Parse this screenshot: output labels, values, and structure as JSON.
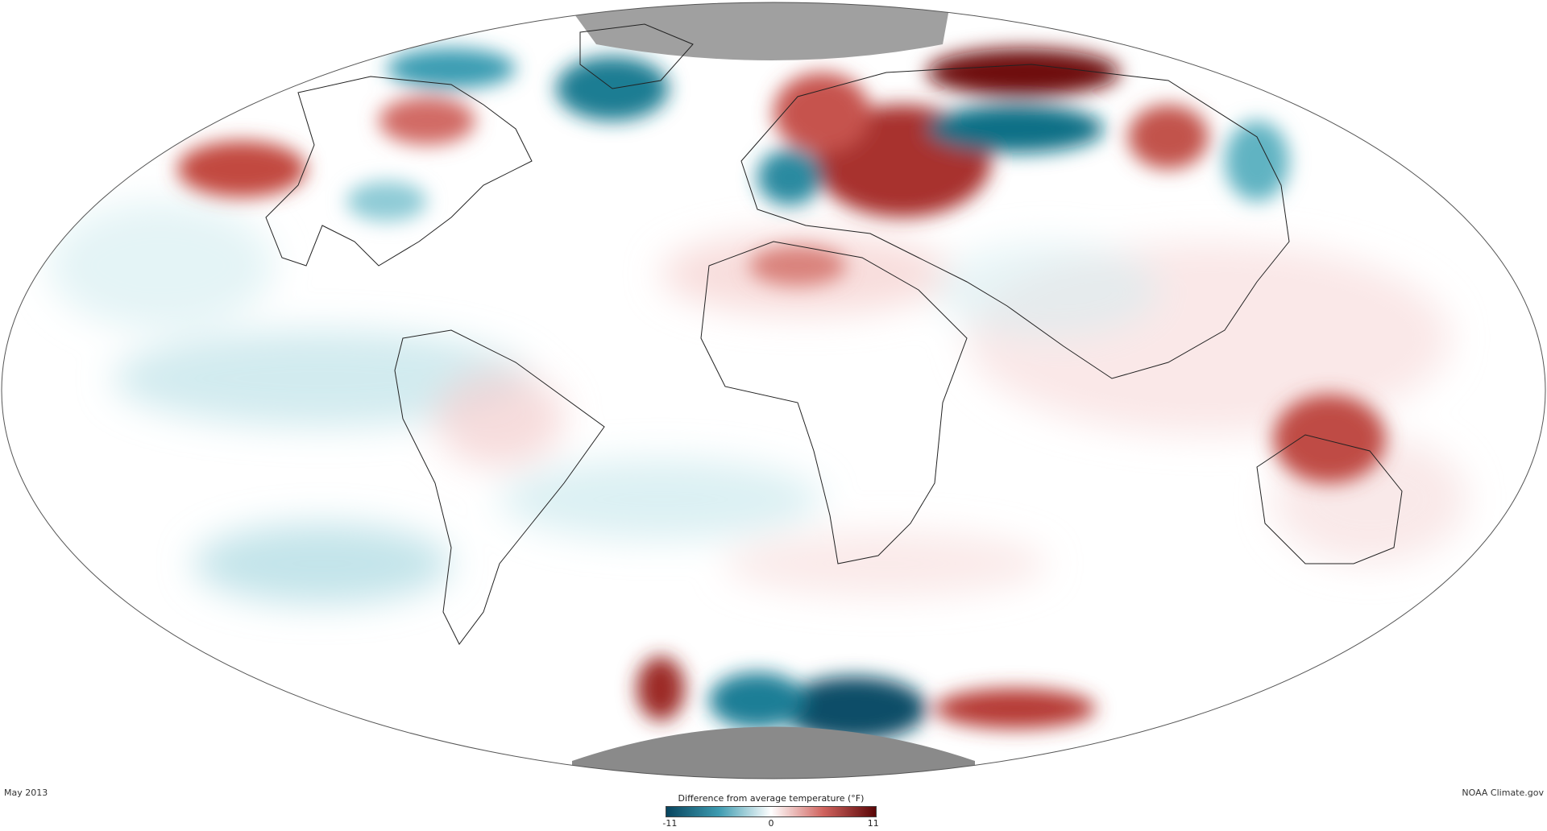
{
  "map": {
    "projection": "mollweide",
    "colors": {
      "cold_extreme": "#08445e",
      "cold": "#3d9bb0",
      "neutral": "#ffffff",
      "warm": "#d0635e",
      "warm_extreme": "#5a0607",
      "no_data": "#8a8a8a"
    }
  },
  "footer": {
    "date": "May 2013",
    "credit": "NOAA Climate.gov"
  },
  "legend": {
    "title": "Difference from average temperature (°F)",
    "min_label": "-11",
    "mid_label": "0",
    "max_label": "11",
    "min": -11,
    "max": 11
  }
}
